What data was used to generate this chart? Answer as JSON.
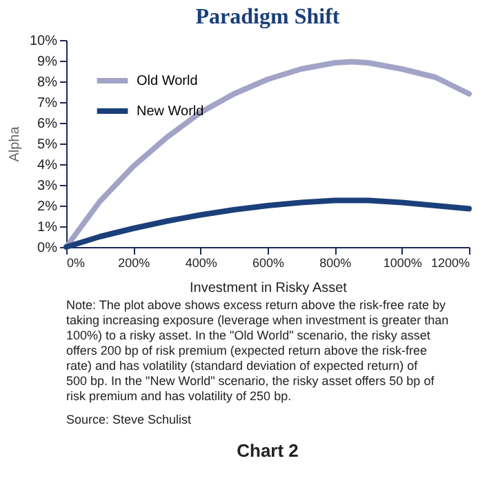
{
  "chart_data": {
    "type": "line",
    "title": "Paradigm Shift",
    "xlabel": "Investment in Risky Asset",
    "ylabel": "Alpha",
    "x": [
      0,
      100,
      200,
      300,
      400,
      500,
      600,
      700,
      800,
      850,
      900,
      1000,
      1100,
      1200
    ],
    "series": [
      {
        "name": "Old World",
        "color": "#a3a3c8",
        "values": [
          0,
          2.2,
          3.9,
          5.3,
          6.5,
          7.4,
          8.1,
          8.6,
          8.9,
          8.95,
          8.9,
          8.6,
          8.2,
          7.4
        ]
      },
      {
        "name": "New World",
        "color": "#1a3f7a",
        "values": [
          0,
          0.5,
          0.9,
          1.25,
          1.55,
          1.8,
          2.0,
          2.15,
          2.25,
          2.25,
          2.25,
          2.15,
          2.0,
          1.85
        ]
      }
    ],
    "xlim": [
      0,
      1200
    ],
    "ylim": [
      0,
      10
    ],
    "xticks": [
      {
        "value": 0,
        "label": "0%"
      },
      {
        "value": 200,
        "label": "200%"
      },
      {
        "value": 400,
        "label": "400%"
      },
      {
        "value": 600,
        "label": "600%"
      },
      {
        "value": 800,
        "label": "800%"
      },
      {
        "value": 1000,
        "label": "1000%"
      },
      {
        "value": 1200,
        "label": "1200%"
      }
    ],
    "yticks": [
      {
        "value": 0,
        "label": "0%"
      },
      {
        "value": 1,
        "label": "1%"
      },
      {
        "value": 2,
        "label": "2%"
      },
      {
        "value": 3,
        "label": "3%"
      },
      {
        "value": 4,
        "label": "4%"
      },
      {
        "value": 5,
        "label": "5%"
      },
      {
        "value": 6,
        "label": "6%"
      },
      {
        "value": 7,
        "label": "7%"
      },
      {
        "value": 8,
        "label": "8%"
      },
      {
        "value": 9,
        "label": "9%"
      },
      {
        "value": 10,
        "label": "10%"
      }
    ],
    "grid": false,
    "legend": "top left",
    "marker": "none",
    "line_style": "solid",
    "annotations": [
      "Note: The plot above shows excess return above the risk-free rate by taking increasing exposure (leverage when investment is greater than 100%) to a risky asset. In the \"Old World\" scenario, the risky asset offers 200 bp of risk premium (expected return above the risk-free rate) and has volatility (standard deviation of expected return) of 500 bp. In the \"New World\" scenario, the risky asset offers 50 bp of risk premium and has volatility of 250 bp.",
      "Source: Steve Schulist",
      "Chart 2"
    ]
  }
}
